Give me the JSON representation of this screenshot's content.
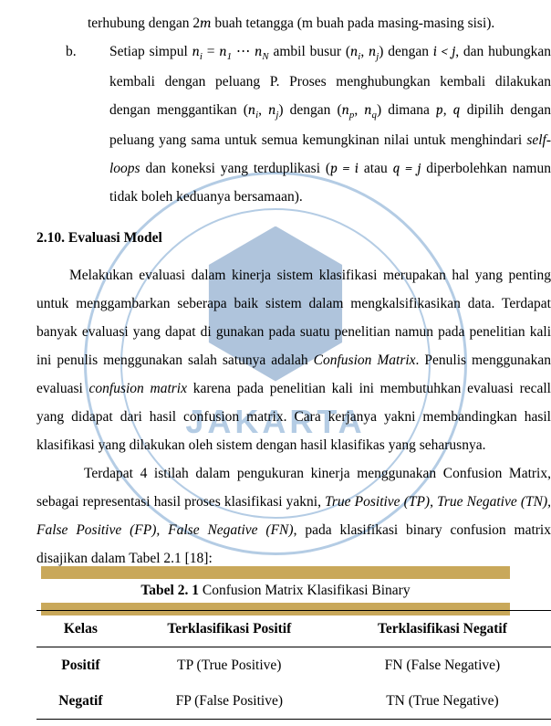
{
  "list_a": {
    "text_pre": "terhubung dengan 2",
    "m": "m",
    "text_post": " buah tetangga (m buah pada masing-masing sisi)."
  },
  "list_b": {
    "marker": "b.",
    "l1_pre": "Setiap simpul ",
    "n_i": "n",
    "sub_i": "i",
    "eq": " = ",
    "n_1": "n",
    "sub_1": "1",
    "dots": " ⋯ ",
    "n_N": "n",
    "sub_N": "N",
    "l1_mid": " ambil busur (",
    "comma": ", ",
    "n_j": "n",
    "sub_j": "j",
    "l1_post": ") dengan ",
    "i_lt_j": "i < j",
    "l1_end": ", dan hubungkan kembali dengan peluang P. Proses menghubungkan kembali dilakukan dengan menggantikan (",
    "l2_mid": ") dengan (",
    "n_p": "n",
    "sub_p": "p",
    "n_q": "n",
    "sub_q": "q",
    "l2_post": ") dimana ",
    "p": "p",
    "q": "q",
    "l2_end": " dipilih dengan peluang yang sama untuk semua kemungkinan nilai untuk menghindari ",
    "selfloops": "self-loops",
    "l3_mid": " dan koneksi yang terduplikasi (",
    "p_eq_i": "p = i",
    "atau": " atau ",
    "q_eq_j": "q = j",
    "l3_end": " diperbolehkan namun tidak boleh keduanya bersamaan)."
  },
  "heading": "2.10. Evaluasi Model",
  "para1": {
    "t1": "Melakukan evaluasi dalam kinerja sistem klasifikasi merupakan hal yang penting untuk menggambarkan seberapa baik sistem dalam mengkalsifikasikan data. Terdapat banyak evaluasi yang dapat di gunakan pada suatu penelitian namun pada penelitian kali ini penulis menggunakan salah satunya adalah ",
    "cm": "Confusion Matrix",
    "t2": ". Penulis menggunakan evaluasi ",
    "cm2": "confusion matrix",
    "t3": " karena pada penelitian kali ini membutuhkan evaluasi recall yang didapat dari hasil confusion matrix. Cara kerjanya yakni membandingkan hasil klasifikasi yang dilakukan oleh sistem dengan hasil klasifikas yang seharusnya."
  },
  "para2": {
    "t1": "Terdapat 4 istilah dalam pengukuran kinerja menggunakan Confusion Matrix, sebagai representasi hasil proses klasifikasi yakni, ",
    "tp": "True Positive (TP), True Negative (TN), False Positive (FP), False Negative (FN)",
    "t2": ", pada klasifikasi binary confusion matrix disajikan dalam Tabel 2.1 [18]:"
  },
  "caption": {
    "bold": "Tabel 2. 1",
    "rest": " Confusion Matrix Klasifikasi Binary"
  },
  "table": {
    "headers": [
      "Kelas",
      "Terklasifikasi Positif",
      "Terklasifikasi Negatif"
    ],
    "rows": [
      [
        "Positif",
        "TP (True Positive)",
        "FN (False Negative)"
      ],
      [
        "Negatif",
        "FP (False Positive)",
        "TN (True Negative)"
      ]
    ]
  },
  "watermark_label": "JAKARTA"
}
